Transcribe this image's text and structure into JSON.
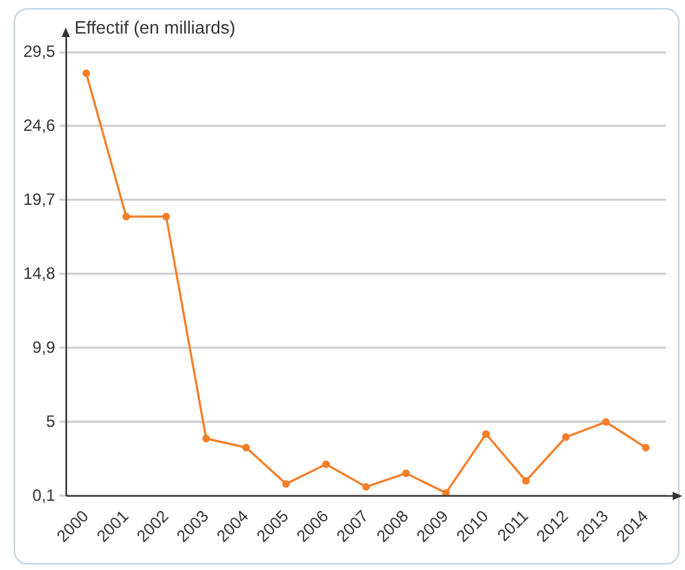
{
  "chart_data": {
    "type": "line",
    "ylabel": "Effectif (en milliards)",
    "categories": [
      "2000",
      "2001",
      "2002",
      "2003",
      "2004",
      "2005",
      "2006",
      "2007",
      "2008",
      "2009",
      "2010",
      "2011",
      "2012",
      "2013",
      "2014"
    ],
    "series": [
      {
        "color": "#f47f2a",
        "values": [
          28.1,
          18.6,
          18.6,
          3.9,
          3.3,
          0.9,
          2.2,
          0.7,
          1.6,
          0.3,
          4.2,
          1.1,
          4.0,
          5.0,
          3.3
        ]
      }
    ],
    "ylim": [
      0.1,
      29.5
    ],
    "yticks": [
      {
        "value": 0.1,
        "label": "0,1"
      },
      {
        "value": 5,
        "label": "5"
      },
      {
        "value": 9.9,
        "label": "9,9"
      },
      {
        "value": 14.8,
        "label": "14,8"
      },
      {
        "value": 19.7,
        "label": "19,7"
      },
      {
        "value": 24.6,
        "label": "24,6"
      },
      {
        "value": 29.5,
        "label": "29,5"
      }
    ],
    "grid": "y",
    "legend": false,
    "marker": "circle",
    "line_style": "solid"
  }
}
